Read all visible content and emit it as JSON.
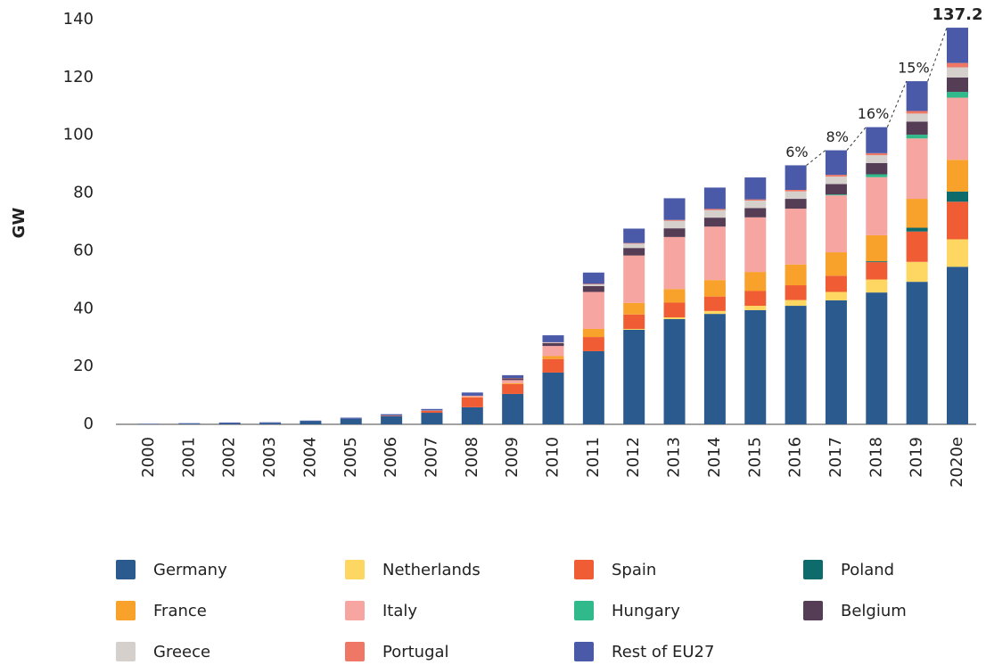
{
  "chart_data": {
    "type": "stacked-bar",
    "y_label": "GW",
    "categories": [
      "2000",
      "2001",
      "2002",
      "2003",
      "2004",
      "2005",
      "2006",
      "2007",
      "2008",
      "2009",
      "2010",
      "2011",
      "2012",
      "2013",
      "2014",
      "2015",
      "2016",
      "2017",
      "2018",
      "2019",
      "2020e"
    ],
    "series": [
      {
        "name": "Germany",
        "color": "#2b5a8f",
        "values": [
          0.1,
          0.2,
          0.3,
          0.4,
          1.1,
          1.9,
          2.8,
          4.0,
          5.9,
          10.5,
          17.9,
          25.3,
          32.7,
          36.4,
          38.2,
          39.5,
          41.0,
          42.9,
          45.6,
          49.3,
          54.5
        ]
      },
      {
        "name": "Netherlands",
        "color": "#fdd761",
        "values": [
          0,
          0,
          0,
          0,
          0,
          0,
          0,
          0,
          0,
          0,
          0,
          0,
          0.3,
          0.6,
          1.0,
          1.5,
          2.0,
          2.9,
          4.5,
          6.9,
          9.5
        ]
      },
      {
        "name": "Spain",
        "color": "#f05d35",
        "values": [
          0,
          0,
          0,
          0,
          0,
          0,
          0.2,
          0.7,
          3.4,
          3.4,
          4.7,
          4.9,
          5.0,
          5.1,
          5.0,
          5.1,
          5.1,
          5.6,
          6.0,
          10.5,
          13.0
        ]
      },
      {
        "name": "Poland",
        "color": "#0e6b6b",
        "values": [
          0,
          0,
          0,
          0,
          0,
          0,
          0,
          0,
          0,
          0,
          0,
          0,
          0,
          0,
          0,
          0,
          0,
          0,
          0.3,
          1.3,
          3.5
        ]
      },
      {
        "name": "France",
        "color": "#f8a12b",
        "values": [
          0,
          0,
          0,
          0,
          0,
          0,
          0,
          0,
          0.1,
          0.3,
          1.0,
          2.8,
          4.0,
          4.7,
          5.7,
          6.6,
          7.2,
          8.1,
          9.0,
          10.0,
          11.0
        ]
      },
      {
        "name": "Italy",
        "color": "#f7a5a1",
        "values": [
          0,
          0,
          0,
          0,
          0,
          0,
          0,
          0.1,
          0.4,
          1.1,
          3.5,
          12.8,
          16.4,
          18.0,
          18.5,
          18.9,
          19.3,
          19.7,
          20.1,
          20.9,
          21.5
        ]
      },
      {
        "name": "Hungary",
        "color": "#30b98b",
        "values": [
          0,
          0,
          0,
          0,
          0,
          0,
          0,
          0,
          0,
          0,
          0,
          0,
          0,
          0,
          0,
          0,
          0,
          0.3,
          1.0,
          1.3,
          2.0
        ]
      },
      {
        "name": "Belgium",
        "color": "#543d55",
        "values": [
          0,
          0,
          0,
          0,
          0,
          0,
          0,
          0,
          0,
          0.6,
          1.0,
          2.0,
          2.6,
          3.0,
          3.1,
          3.2,
          3.4,
          3.6,
          3.9,
          4.5,
          5.0
        ]
      },
      {
        "name": "Greece",
        "color": "#d6d0cc",
        "values": [
          0,
          0,
          0,
          0,
          0,
          0,
          0,
          0,
          0,
          0,
          0.2,
          0.6,
          1.5,
          2.6,
          2.6,
          2.6,
          2.6,
          2.6,
          2.7,
          2.8,
          3.5
        ]
      },
      {
        "name": "Portugal",
        "color": "#ef7766",
        "values": [
          0,
          0,
          0,
          0,
          0,
          0,
          0,
          0,
          0.1,
          0.1,
          0.1,
          0.2,
          0.2,
          0.3,
          0.4,
          0.4,
          0.5,
          0.6,
          0.7,
          0.9,
          1.5
        ]
      },
      {
        "name": "Rest of EU27",
        "color": "#4a5aa8",
        "values": [
          0.1,
          0.2,
          0.3,
          0.3,
          0.2,
          0.4,
          0.5,
          0.5,
          1.1,
          1.0,
          2.4,
          3.9,
          5.0,
          7.5,
          7.4,
          7.6,
          8.5,
          8.5,
          9.0,
          10.3,
          12.2
        ]
      }
    ],
    "annotations": [
      {
        "text": "6%",
        "category": "2016"
      },
      {
        "text": "8%",
        "category": "2017"
      },
      {
        "text": "16%",
        "category": "2018"
      },
      {
        "text": "15%",
        "category": "2019"
      },
      {
        "text": "137.2",
        "category": "2020e"
      }
    ],
    "ylim": [
      0,
      140
    ],
    "yticks": [
      0,
      20,
      40,
      60,
      80,
      100,
      120,
      140
    ]
  }
}
